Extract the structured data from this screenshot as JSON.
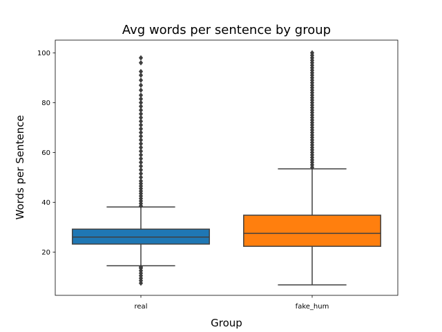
{
  "chart_data": {
    "type": "box",
    "title": "Avg words per sentence by group",
    "xlabel": "Group",
    "ylabel": "Words per Sentence",
    "ylim": [
      2,
      102
    ],
    "yticks": [
      20,
      40,
      60,
      80,
      100
    ],
    "grid": false,
    "categories": [
      "real",
      "fake_hum"
    ],
    "colors": [
      "#1f77b4",
      "#ff7f0e"
    ],
    "boxes": [
      {
        "name": "real",
        "whisker_low": 14.5,
        "q1": 23.2,
        "median": 26.0,
        "q3": 29.2,
        "whisker_high": 38.1,
        "outliers_high": [
          38.5,
          39.5,
          40.5,
          41.5,
          42.5,
          43.5,
          44.5,
          45.5,
          46.5,
          47.5,
          48.5,
          50,
          51.5,
          53,
          54.5,
          56,
          57.5,
          59,
          60.5,
          62,
          63.5,
          65,
          66.5,
          68,
          69.5,
          71,
          72.5,
          74,
          75.5,
          77,
          78.5,
          80,
          81.5,
          83,
          85,
          87,
          89,
          91,
          92.5,
          96,
          98
        ],
        "outliers_low": [
          7.5,
          8.5,
          9.5,
          10.5,
          11.5,
          12.5,
          13.5,
          14
        ]
      },
      {
        "name": "fake_hum",
        "whisker_low": 6.8,
        "q1": 22.3,
        "median": 27.5,
        "q3": 34.8,
        "whisker_high": 53.4,
        "outliers_high": [
          54,
          55,
          56,
          57,
          58,
          59,
          60,
          61,
          62,
          63,
          64,
          65,
          66,
          67,
          68,
          69,
          70,
          71,
          72,
          73,
          74,
          75,
          76,
          77,
          78,
          79,
          80,
          81,
          82,
          83,
          84,
          85,
          86,
          87,
          88,
          89,
          90,
          91,
          92,
          93,
          94,
          95,
          96,
          97,
          98,
          99,
          100
        ],
        "outliers_low": []
      }
    ]
  }
}
